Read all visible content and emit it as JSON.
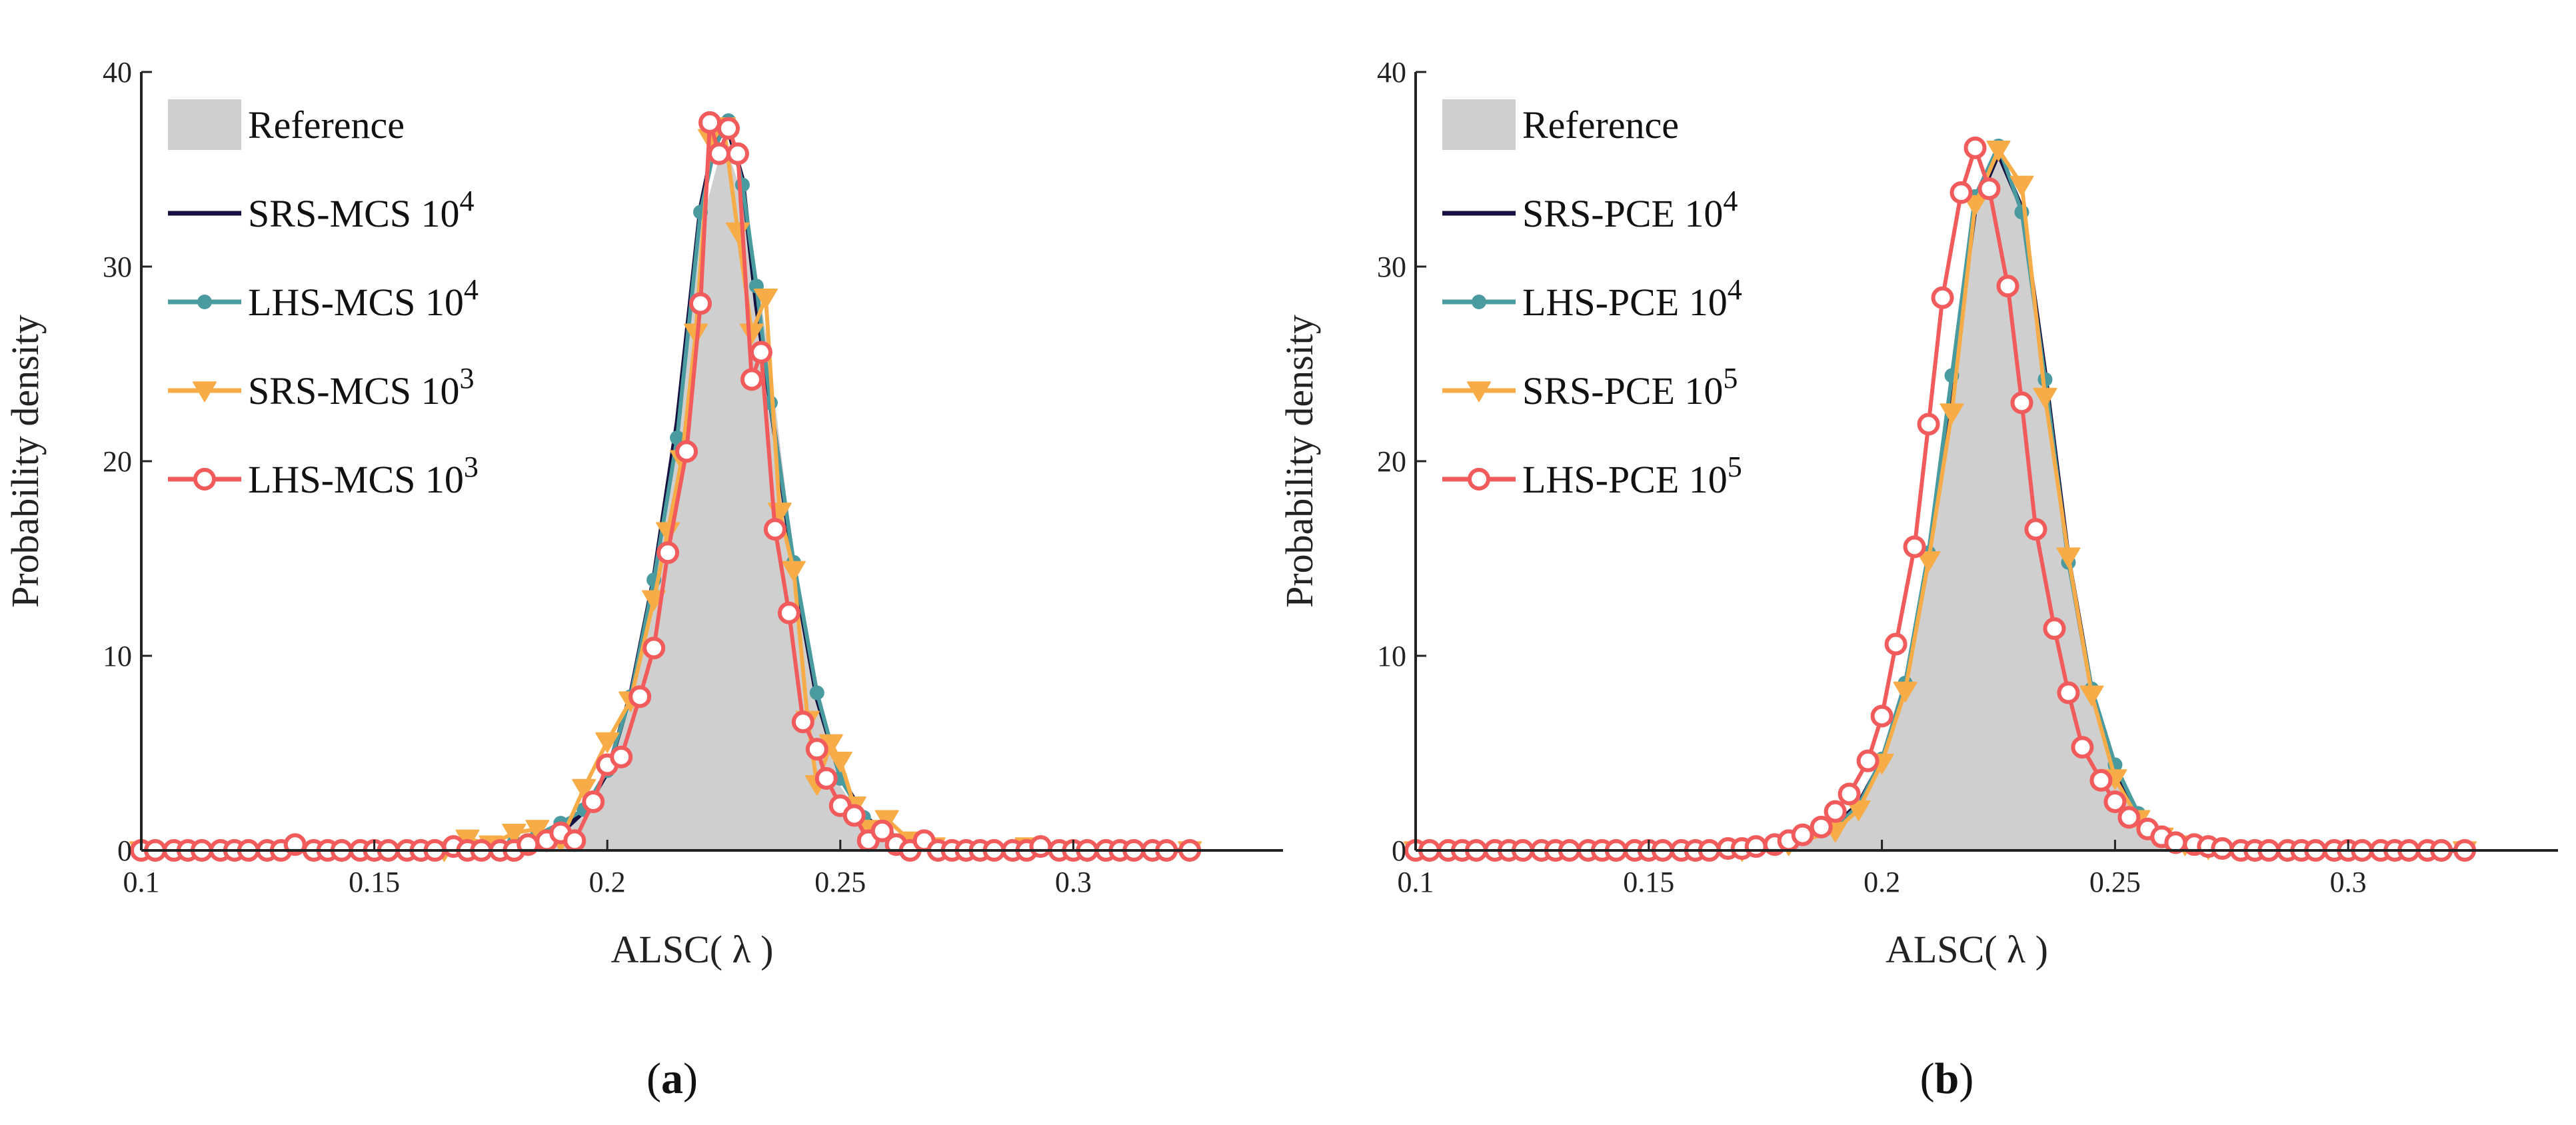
{
  "chart_data": [
    {
      "type": "line",
      "panel_label": "a",
      "xlabel": "ALSC( λ )",
      "ylabel": "Probability density",
      "xlim": [
        0.1,
        0.345
      ],
      "ylim": [
        0,
        40
      ],
      "xticks": [
        0.1,
        0.15,
        0.2,
        0.25,
        0.3
      ],
      "xtick_labels": [
        "0.1",
        "0.15",
        "0.2",
        "0.25",
        "0.3"
      ],
      "yticks": [
        0,
        10,
        20,
        30,
        40
      ],
      "ytick_labels": [
        "0",
        "10",
        "20",
        "30",
        "40"
      ],
      "legend_position": "top-left",
      "reference": {
        "name": "Reference",
        "x": [
          0.1,
          0.17,
          0.18,
          0.19,
          0.195,
          0.2,
          0.205,
          0.21,
          0.215,
          0.22,
          0.225,
          0.23,
          0.235,
          0.24,
          0.245,
          0.25,
          0.255,
          0.26,
          0.265,
          0.27,
          0.28,
          0.325
        ],
        "y": [
          0,
          0,
          0.2,
          0.8,
          1.8,
          3.8,
          7.5,
          14,
          23,
          32,
          36.5,
          33,
          25,
          15,
          7.5,
          3.3,
          1.5,
          0.6,
          0.2,
          0.05,
          0,
          0
        ]
      },
      "series": [
        {
          "name": "SRS-MCS 10",
          "exponent": "4",
          "color": "#14103f",
          "marker": "none",
          "x": [
            0.1,
            0.17,
            0.18,
            0.19,
            0.195,
            0.2,
            0.205,
            0.21,
            0.215,
            0.22,
            0.223,
            0.226,
            0.229,
            0.232,
            0.235,
            0.24,
            0.245,
            0.25,
            0.255,
            0.26,
            0.265,
            0.27,
            0.28,
            0.325
          ],
          "y": [
            0,
            0,
            0.3,
            0.9,
            2,
            4,
            8,
            14,
            22,
            33,
            36.5,
            37,
            34.5,
            28,
            23,
            14.5,
            7.8,
            3.8,
            1.8,
            0.8,
            0.3,
            0.1,
            0,
            0
          ]
        },
        {
          "name": "LHS-MCS 10",
          "exponent": "4",
          "color": "#4a9ba0",
          "marker": "dot",
          "x": [
            0.1,
            0.16,
            0.17,
            0.18,
            0.185,
            0.19,
            0.195,
            0.2,
            0.205,
            0.21,
            0.215,
            0.22,
            0.223,
            0.226,
            0.229,
            0.232,
            0.235,
            0.24,
            0.245,
            0.25,
            0.255,
            0.26,
            0.265,
            0.27,
            0.28,
            0.325
          ],
          "y": [
            0,
            0,
            0.1,
            0.4,
            0.8,
            1.4,
            2.1,
            4.1,
            7.9,
            13.9,
            21.2,
            32.8,
            36.1,
            37.5,
            34.2,
            29,
            23,
            14.8,
            8.1,
            3.7,
            1.7,
            0.8,
            0.3,
            0.1,
            0,
            0
          ]
        },
        {
          "name": "SRS-MCS 10",
          "exponent": "3",
          "color": "#f7ac48",
          "marker": "triangle-down",
          "x": [
            0.1,
            0.165,
            0.17,
            0.175,
            0.18,
            0.185,
            0.19,
            0.195,
            0.2,
            0.205,
            0.21,
            0.213,
            0.216,
            0.219,
            0.222,
            0.225,
            0.228,
            0.231,
            0.234,
            0.237,
            0.24,
            0.243,
            0.245,
            0.248,
            0.25,
            0.253,
            0.256,
            0.26,
            0.265,
            0.27,
            0.29,
            0.3,
            0.325
          ],
          "y": [
            0,
            0,
            0.6,
            0.3,
            0.9,
            1.1,
            0.5,
            3.2,
            5.6,
            7.7,
            12.9,
            16.4,
            20.1,
            26.6,
            36.6,
            37.2,
            31.8,
            26.6,
            28.4,
            17.4,
            14.4,
            6.7,
            3.4,
            5.5,
            4.6,
            2.3,
            1.1,
            1.6,
            0.5,
            0.2,
            0.2,
            0,
            0
          ]
        },
        {
          "name": "LHS-MCS 10",
          "exponent": "3",
          "color": "#f25b5b",
          "marker": "circle",
          "x": [
            0.1,
            0.103,
            0.107,
            0.11,
            0.113,
            0.117,
            0.12,
            0.123,
            0.127,
            0.13,
            0.133,
            0.137,
            0.14,
            0.143,
            0.147,
            0.15,
            0.153,
            0.157,
            0.16,
            0.163,
            0.167,
            0.17,
            0.173,
            0.177,
            0.18,
            0.183,
            0.187,
            0.19,
            0.193,
            0.197,
            0.2,
            0.203,
            0.207,
            0.21,
            0.213,
            0.217,
            0.22,
            0.222,
            0.224,
            0.226,
            0.228,
            0.231,
            0.233,
            0.236,
            0.239,
            0.242,
            0.245,
            0.247,
            0.25,
            0.253,
            0.256,
            0.259,
            0.262,
            0.265,
            0.268,
            0.271,
            0.274,
            0.277,
            0.28,
            0.283,
            0.287,
            0.29,
            0.293,
            0.297,
            0.3,
            0.303,
            0.307,
            0.31,
            0.313,
            0.317,
            0.32,
            0.325
          ],
          "y": [
            0,
            0,
            0,
            0,
            0,
            0,
            0,
            0,
            0,
            0,
            0.3,
            0,
            0,
            0,
            0,
            0,
            0,
            0,
            0,
            0,
            0.2,
            0,
            0,
            0,
            0,
            0.3,
            0.5,
            0.9,
            0.5,
            2.5,
            4.4,
            4.8,
            7.9,
            10.4,
            15.3,
            20.5,
            28.1,
            37.4,
            35.8,
            37.1,
            35.8,
            24.2,
            25.6,
            16.5,
            12.2,
            6.6,
            5.2,
            3.7,
            2.3,
            1.8,
            0.5,
            1,
            0.3,
            0,
            0.5,
            0,
            0,
            0,
            0,
            0,
            0,
            0,
            0.2,
            0,
            0,
            0,
            0,
            0,
            0,
            0,
            0,
            0
          ]
        }
      ]
    },
    {
      "type": "line",
      "panel_label": "b",
      "xlabel": "ALSC( λ )",
      "ylabel": "Probability density",
      "xlim": [
        0.1,
        0.345
      ],
      "ylim": [
        0,
        40
      ],
      "xticks": [
        0.1,
        0.15,
        0.2,
        0.25,
        0.3
      ],
      "xtick_labels": [
        "0.1",
        "0.15",
        "0.2",
        "0.25",
        "0.3"
      ],
      "yticks": [
        0,
        10,
        20,
        30,
        40
      ],
      "ytick_labels": [
        "0",
        "10",
        "20",
        "30",
        "40"
      ],
      "legend_position": "top-left",
      "reference": {
        "name": "Reference",
        "x": [
          0.1,
          0.17,
          0.18,
          0.19,
          0.195,
          0.2,
          0.205,
          0.21,
          0.215,
          0.22,
          0.225,
          0.23,
          0.235,
          0.24,
          0.245,
          0.25,
          0.255,
          0.26,
          0.265,
          0.27,
          0.28,
          0.325
        ],
        "y": [
          0,
          0,
          0.3,
          1.1,
          2.2,
          4.5,
          8.3,
          14.8,
          24,
          33,
          36,
          33,
          24.5,
          15,
          8,
          3.8,
          1.7,
          0.7,
          0.3,
          0.1,
          0,
          0
        ]
      },
      "series": [
        {
          "name": "SRS-PCE 10",
          "exponent": "4",
          "color": "#14103f",
          "marker": "none",
          "x": [
            0.1,
            0.17,
            0.18,
            0.19,
            0.195,
            0.2,
            0.205,
            0.21,
            0.215,
            0.22,
            0.225,
            0.23,
            0.235,
            0.24,
            0.245,
            0.25,
            0.255,
            0.26,
            0.265,
            0.27,
            0.28,
            0.325
          ],
          "y": [
            0,
            0,
            0.5,
            1.3,
            2.4,
            4.6,
            8.4,
            15,
            24,
            33,
            35.8,
            33,
            24.5,
            15,
            8.2,
            3.9,
            1.8,
            0.8,
            0.3,
            0.1,
            0,
            0
          ]
        },
        {
          "name": "LHS-PCE 10",
          "exponent": "4",
          "color": "#4a9ba0",
          "marker": "dot",
          "x": [
            0.1,
            0.17,
            0.18,
            0.19,
            0.195,
            0.2,
            0.205,
            0.21,
            0.215,
            0.22,
            0.225,
            0.23,
            0.235,
            0.24,
            0.245,
            0.25,
            0.255,
            0.26,
            0.265,
            0.27,
            0.28,
            0.325
          ],
          "y": [
            0,
            0,
            0.4,
            1.2,
            2.3,
            4.7,
            8.6,
            15.3,
            24.4,
            33.6,
            36.2,
            32.8,
            24.2,
            14.8,
            8.3,
            4.4,
            1.9,
            0.9,
            0.3,
            0.1,
            0,
            0
          ]
        },
        {
          "name": "SRS-PCE 10",
          "exponent": "5",
          "color": "#f7ac48",
          "marker": "triangle-down",
          "x": [
            0.1,
            0.17,
            0.18,
            0.19,
            0.195,
            0.2,
            0.205,
            0.21,
            0.215,
            0.22,
            0.225,
            0.23,
            0.235,
            0.24,
            0.245,
            0.25,
            0.255,
            0.26,
            0.265,
            0.27,
            0.28,
            0.325
          ],
          "y": [
            0,
            0,
            0.3,
            1,
            2.1,
            4.5,
            8.2,
            14.9,
            22.5,
            33.2,
            36,
            34.2,
            23.3,
            15.1,
            8,
            3.7,
            1.6,
            0.7,
            0.3,
            0.1,
            0,
            0
          ]
        },
        {
          "name": "LHS-PCE 10",
          "exponent": "5",
          "color": "#f25b5b",
          "marker": "circle",
          "x": [
            0.1,
            0.103,
            0.107,
            0.11,
            0.113,
            0.117,
            0.12,
            0.123,
            0.127,
            0.13,
            0.133,
            0.137,
            0.14,
            0.143,
            0.147,
            0.15,
            0.153,
            0.157,
            0.16,
            0.163,
            0.167,
            0.17,
            0.173,
            0.177,
            0.18,
            0.183,
            0.187,
            0.19,
            0.193,
            0.197,
            0.2,
            0.203,
            0.207,
            0.21,
            0.213,
            0.217,
            0.22,
            0.223,
            0.227,
            0.23,
            0.233,
            0.237,
            0.24,
            0.243,
            0.247,
            0.25,
            0.253,
            0.257,
            0.26,
            0.263,
            0.267,
            0.27,
            0.273,
            0.277,
            0.28,
            0.283,
            0.287,
            0.29,
            0.293,
            0.297,
            0.3,
            0.303,
            0.307,
            0.31,
            0.313,
            0.317,
            0.32,
            0.325
          ],
          "y": [
            0,
            0,
            0,
            0,
            0,
            0,
            0,
            0,
            0,
            0,
            0,
            0,
            0,
            0,
            0,
            0,
            0,
            0,
            0,
            0,
            0.1,
            0.1,
            0.2,
            0.3,
            0.5,
            0.8,
            1.2,
            2,
            2.9,
            4.6,
            6.9,
            10.6,
            15.6,
            21.9,
            28.4,
            33.8,
            36.1,
            34,
            29,
            23,
            16.5,
            11.4,
            8.1,
            5.3,
            3.6,
            2.5,
            1.7,
            1.1,
            0.7,
            0.4,
            0.3,
            0.2,
            0.1,
            0,
            0,
            0,
            0,
            0,
            0,
            0,
            0,
            0,
            0,
            0,
            0,
            0,
            0,
            0
          ]
        }
      ]
    }
  ]
}
